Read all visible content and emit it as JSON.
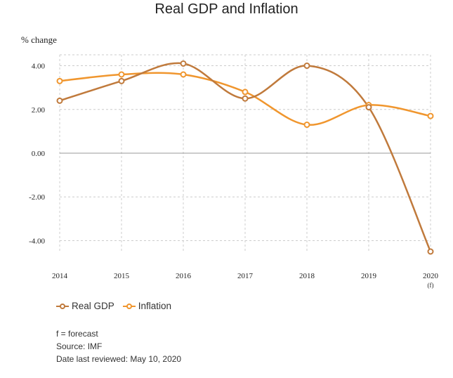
{
  "chart_data": {
    "type": "line",
    "title": "Real GDP and Inflation",
    "ylabel": "% change",
    "xlabel": "",
    "categories": [
      "2014",
      "2015",
      "2016",
      "2017",
      "2018",
      "2019",
      "2020"
    ],
    "category_sublabels": [
      "",
      "",
      "",
      "",
      "",
      "",
      "(f)"
    ],
    "series": [
      {
        "name": "Real GDP",
        "color": "#c07a3c",
        "values": [
          2.4,
          3.3,
          4.1,
          2.5,
          4.0,
          2.1,
          -4.5
        ]
      },
      {
        "name": "Inflation",
        "color": "#f0962e",
        "values": [
          3.3,
          3.6,
          3.6,
          2.8,
          1.3,
          2.2,
          1.7
        ]
      }
    ],
    "ylim": [
      -4.5,
      4.5
    ],
    "yticks": [
      4,
      2,
      0,
      -2,
      -4
    ],
    "ytick_labels": [
      "4.00",
      "2.00",
      "0.00",
      "-2.00",
      "-4.00"
    ],
    "grid": true,
    "legend": "bottom-left"
  },
  "notes": {
    "forecast": "f = forecast",
    "source": "Source: IMF",
    "reviewed": "Date last reviewed: May 10, 2020"
  }
}
